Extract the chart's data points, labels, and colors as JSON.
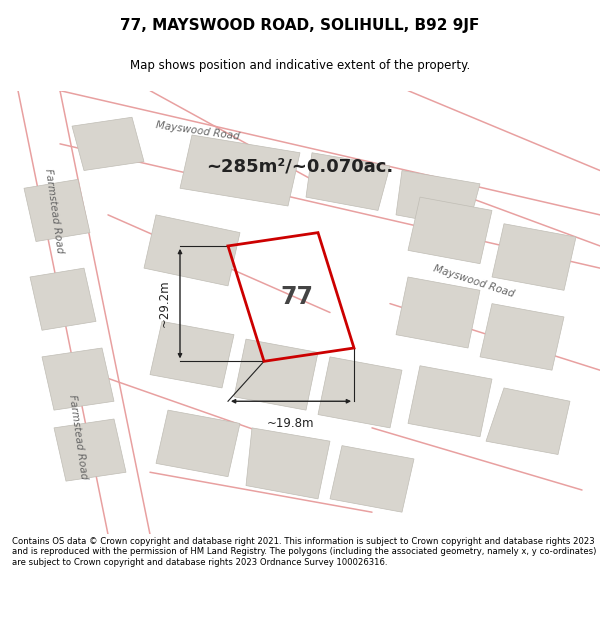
{
  "title_line1": "77, MAYSWOOD ROAD, SOLIHULL, B92 9JF",
  "title_line2": "Map shows position and indicative extent of the property.",
  "area_text": "~285m²/~0.070ac.",
  "property_number": "77",
  "dim_vertical": "~29.2m",
  "dim_horizontal": "~19.8m",
  "road_label_mayswood_top": "Mayswood Road",
  "road_label_mayswood_right": "Mayswood Road",
  "road_label_farmstead_top": "Farmstead Road",
  "road_label_farmstead_bottom": "Farmstead Road",
  "footer_text": "Contains OS data © Crown copyright and database right 2021. This information is subject to Crown copyright and database rights 2023 and is reproduced with the permission of HM Land Registry. The polygons (including the associated geometry, namely x, y co-ordinates) are subject to Crown copyright and database rights 2023 Ordnance Survey 100026316.",
  "map_bg": "#f5f4f0",
  "building_color": "#d8d5ce",
  "building_edge": "#c0bdb5",
  "road_line_color": "#e8a0a0",
  "property_outline_color": "#cc0000",
  "dim_line_color": "#222222",
  "page_bg": "#ffffff",
  "road_label_color": "#666666",
  "number_color": "#444444",
  "area_color": "#222222"
}
